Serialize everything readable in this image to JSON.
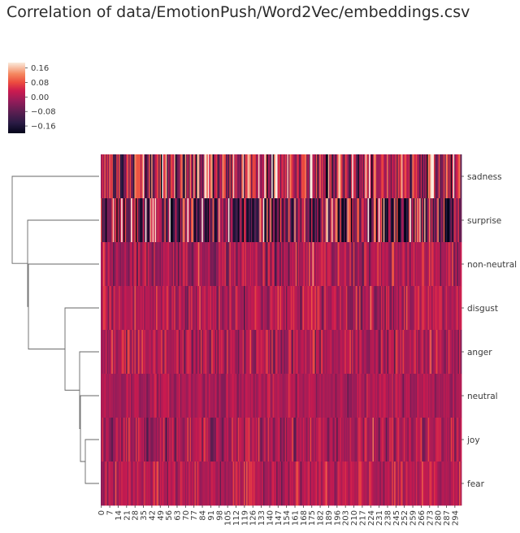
{
  "page": {
    "title": "Correlation of data/EmotionPush/Word2Vec/embeddings.csv"
  },
  "chart_data": {
    "type": "heatmap",
    "title": "Correlation of data/EmotionPush/Word2Vec/embeddings.csv",
    "rows": [
      "sadness",
      "surprise",
      "non-neutral",
      "disgust",
      "anger",
      "neutral",
      "joy",
      "fear"
    ],
    "column_count": 300,
    "x_tick_step": 7,
    "x_tick_labels": [
      "0",
      "7",
      "14",
      "21",
      "28",
      "35",
      "42",
      "49",
      "56",
      "63",
      "70",
      "77",
      "84",
      "91",
      "98",
      "105",
      "112",
      "119",
      "126",
      "133",
      "140",
      "147",
      "154",
      "161",
      "168",
      "175",
      "182",
      "189",
      "196",
      "203",
      "210",
      "217",
      "224",
      "231",
      "238",
      "245",
      "252",
      "259",
      "266",
      "273",
      "280",
      "287",
      "294"
    ],
    "colorbar": {
      "ticks": [
        0.16,
        0.08,
        0.0,
        -0.08,
        -0.16
      ],
      "tick_labels": [
        "0.16",
        "0.08",
        "0.00",
        "−0.08",
        "−0.16"
      ],
      "range": [
        -0.2,
        0.19
      ],
      "colormap": "rocket"
    },
    "row_value_profiles": [
      {
        "row": "sadness",
        "mean": 0.02,
        "spread": 0.1
      },
      {
        "row": "surprise",
        "mean": -0.05,
        "spread": 0.13
      },
      {
        "row": "non-neutral",
        "mean": 0.0,
        "spread": 0.05
      },
      {
        "row": "disgust",
        "mean": 0.01,
        "spread": 0.05
      },
      {
        "row": "anger",
        "mean": 0.0,
        "spread": 0.05
      },
      {
        "row": "neutral",
        "mean": 0.0,
        "spread": 0.03
      },
      {
        "row": "joy",
        "mean": 0.0,
        "spread": 0.045
      },
      {
        "row": "fear",
        "mean": 0.01,
        "spread": 0.04
      }
    ],
    "row_dendrogram": {
      "linkage": [
        [
          "joy",
          "fear"
        ],
        [
          "neutral",
          "joy+fear"
        ],
        [
          "anger",
          "neutral+joy+fear"
        ],
        [
          "disgust",
          "anger+neutral+joy+fear"
        ],
        [
          "non-neutral",
          "disgust+anger+neutral+joy+fear"
        ],
        [
          "surprise",
          "non-neutral+disgust+anger+neutral+joy+fear"
        ],
        [
          "sadness",
          "surprise+non-neutral+disgust+anger+neutral+joy+fear"
        ]
      ]
    },
    "grid": false
  }
}
